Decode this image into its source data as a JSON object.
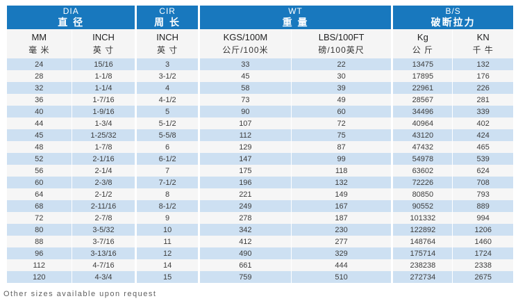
{
  "table": {
    "groups": [
      {
        "en": "DIA",
        "cn": "直 径"
      },
      {
        "en": "CIR",
        "cn": "周 长"
      },
      {
        "en": "WT",
        "cn": "重 量"
      },
      {
        "en": "B/S",
        "cn": "破断拉力"
      }
    ],
    "columns": [
      {
        "en": "MM",
        "cn": "毫 米"
      },
      {
        "en": "INCH",
        "cn": "英 寸"
      },
      {
        "en": "INCH",
        "cn": "英 寸"
      },
      {
        "en": "KGS/100M",
        "cn": "公斤/100米"
      },
      {
        "en": "LBS/100FT",
        "cn": "磅/100英尺"
      },
      {
        "en": "Kg",
        "cn": "公 斤"
      },
      {
        "en": "KN",
        "cn": "千 牛"
      }
    ],
    "rows": [
      [
        "24",
        "15/16",
        "3",
        "33",
        "22",
        "13475",
        "132"
      ],
      [
        "28",
        "1-1/8",
        "3-1/2",
        "45",
        "30",
        "17895",
        "176"
      ],
      [
        "32",
        "1-1/4",
        "4",
        "58",
        "39",
        "22961",
        "226"
      ],
      [
        "36",
        "1-7/16",
        "4-1/2",
        "73",
        "49",
        "28567",
        "281"
      ],
      [
        "40",
        "1-9/16",
        "5",
        "90",
        "60",
        "34496",
        "339"
      ],
      [
        "44",
        "1-3/4",
        "5-1/2",
        "107",
        "72",
        "40964",
        "402"
      ],
      [
        "45",
        "1-25/32",
        "5-5/8",
        "112",
        "75",
        "43120",
        "424"
      ],
      [
        "48",
        "1-7/8",
        "6",
        "129",
        "87",
        "47432",
        "465"
      ],
      [
        "52",
        "2-1/16",
        "6-1/2",
        "147",
        "99",
        "54978",
        "539"
      ],
      [
        "56",
        "2-1/4",
        "7",
        "175",
        "118",
        "63602",
        "624"
      ],
      [
        "60",
        "2-3/8",
        "7-1/2",
        "196",
        "132",
        "72226",
        "708"
      ],
      [
        "64",
        "2-1/2",
        "8",
        "221",
        "149",
        "80850",
        "793"
      ],
      [
        "68",
        "2-11/16",
        "8-1/2",
        "249",
        "167",
        "90552",
        "889"
      ],
      [
        "72",
        "2-7/8",
        "9",
        "278",
        "187",
        "101332",
        "994"
      ],
      [
        "80",
        "3-5/32",
        "10",
        "342",
        "230",
        "122892",
        "1206"
      ],
      [
        "88",
        "3-7/16",
        "11",
        "412",
        "277",
        "148764",
        "1460"
      ],
      [
        "96",
        "3-13/16",
        "12",
        "490",
        "329",
        "175714",
        "1724"
      ],
      [
        "112",
        "4-7/16",
        "14",
        "661",
        "444",
        "238238",
        "2338"
      ],
      [
        "120",
        "4-3/4",
        "15",
        "759",
        "510",
        "272734",
        "2675"
      ]
    ]
  },
  "footer": {
    "note": "Other sizes available upon request"
  },
  "colors": {
    "header_blue": "#1878be",
    "row_alt_blue": "#cde0f2",
    "row_alt_white": "#f6f6f6",
    "subheader_bg": "#f5f5f5"
  }
}
